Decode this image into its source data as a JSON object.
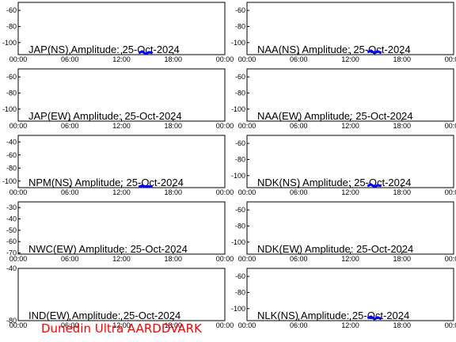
{
  "footer": "Dunedin Ultra AARDDVARK",
  "colors": {
    "axes": "#000000",
    "data": "#0000ff",
    "footer": "#ff0000",
    "background": "#ffffff"
  },
  "chart_data": [
    {
      "type": "line",
      "title": "JAP(NS) Amplitude: 25-Oct-2024",
      "xticks": [
        "00:00",
        "06:00",
        "12:00",
        "18:00",
        "00:00"
      ],
      "xlim": [
        0,
        24
      ],
      "ylim": [
        -115,
        -50
      ],
      "yticks": [
        -60,
        -80,
        -100
      ],
      "series": [
        {
          "x": [
            14.0,
            14.4,
            14.8,
            15.2,
            15.6
          ],
          "y": [
            -113,
            -111,
            -114,
            -112,
            -113
          ]
        }
      ]
    },
    {
      "type": "line",
      "title": "NAA(NS) Amplitude: 25-Oct-2024",
      "xticks": [
        "00:00",
        "06:00",
        "12:00",
        "18:00",
        "00:00"
      ],
      "xlim": [
        0,
        24
      ],
      "ylim": [
        -115,
        -50
      ],
      "yticks": [
        -60,
        -80,
        -100
      ],
      "series": [
        {
          "x": [
            14.0,
            14.4,
            14.8,
            15.2,
            15.6
          ],
          "y": [
            -112,
            -110,
            -113,
            -111,
            -113
          ]
        }
      ]
    },
    {
      "type": "line",
      "title": "JAP(EW) Amplitude: 25-Oct-2024",
      "xticks": [
        "00:00",
        "06:00",
        "12:00",
        "18:00",
        "00:00"
      ],
      "xlim": [
        0,
        24
      ],
      "ylim": [
        -115,
        -50
      ],
      "yticks": [
        -60,
        -80,
        -100
      ],
      "series": []
    },
    {
      "type": "line",
      "title": "NAA(EW) Amplitude: 25-Oct-2024",
      "xticks": [
        "00:00",
        "06:00",
        "12:00",
        "18:00",
        "00:00"
      ],
      "xlim": [
        0,
        24
      ],
      "ylim": [
        -115,
        -50
      ],
      "yticks": [
        -60,
        -80,
        -100
      ],
      "series": []
    },
    {
      "type": "line",
      "title": "NPM(NS) Amplitude: 25-Oct-2024",
      "xticks": [
        "00:00",
        "06:00",
        "12:00",
        "18:00",
        "00:00"
      ],
      "xlim": [
        0,
        24
      ],
      "ylim": [
        -110,
        -30
      ],
      "yticks": [
        -40,
        -60,
        -80,
        -100
      ],
      "series": [
        {
          "x": [
            14.0,
            14.4,
            14.8,
            15.2,
            15.6
          ],
          "y": [
            -109,
            -107,
            -109,
            -108,
            -109
          ]
        }
      ]
    },
    {
      "type": "line",
      "title": "NDK(NS) Amplitude: 25-Oct-2024",
      "xticks": [
        "00:00",
        "06:00",
        "12:00",
        "18:00",
        "00:00"
      ],
      "xlim": [
        0,
        24
      ],
      "ylim": [
        -115,
        -50
      ],
      "yticks": [
        -60,
        -80,
        -100
      ],
      "series": [
        {
          "x": [
            14.0,
            14.4,
            14.8,
            15.2,
            15.6
          ],
          "y": [
            -113,
            -111,
            -114,
            -112,
            -113
          ]
        }
      ]
    },
    {
      "type": "line",
      "title": "NWC(EW) Amplitude: 25-Oct-2024",
      "xticks": [
        "00:00",
        "06:00",
        "12:00",
        "18:00",
        "00:00"
      ],
      "xlim": [
        0,
        24
      ],
      "ylim": [
        -71,
        -25
      ],
      "yticks": [
        -30,
        -40,
        -50,
        -60,
        -70
      ],
      "series": []
    },
    {
      "type": "line",
      "title": "NDK(EW) Amplitude: 25-Oct-2024",
      "xticks": [
        "00:00",
        "06:00",
        "12:00",
        "18:00",
        "00:00"
      ],
      "xlim": [
        0,
        24
      ],
      "ylim": [
        -115,
        -50
      ],
      "yticks": [
        -60,
        -80,
        -100
      ],
      "series": []
    },
    {
      "type": "line",
      "title": "IND(EW) Amplitude: 25-Oct-2024",
      "xticks": [
        "00:00",
        "06:00",
        "12:00",
        "18:00",
        "00:00"
      ],
      "xlim": [
        0,
        24
      ],
      "ylim": [
        -80,
        -40
      ],
      "yticks": [
        -40,
        -80
      ],
      "series": []
    },
    {
      "type": "line",
      "title": "NLK(NS) Amplitude: 25-Oct-2024",
      "xticks": [
        "00:00",
        "06:00",
        "12:00",
        "18:00",
        "00:00"
      ],
      "xlim": [
        0,
        24
      ],
      "ylim": [
        -115,
        -50
      ],
      "yticks": [
        -60,
        -80,
        -100
      ],
      "series": [
        {
          "x": [
            14.0,
            14.4,
            14.8,
            15.2,
            15.6
          ],
          "y": [
            -112,
            -110,
            -113,
            -111,
            -113
          ]
        }
      ]
    }
  ]
}
